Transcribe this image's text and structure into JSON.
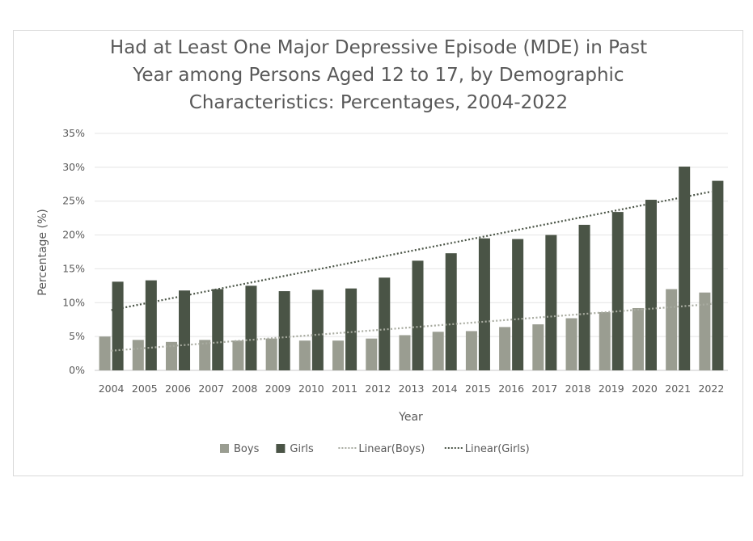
{
  "chart_data": {
    "type": "bar",
    "title_lines": [
      "Had at Least One Major Depressive Episode (MDE) in Past",
      "Year among Persons Aged 12 to 17, by Demographic",
      "Characteristics: Percentages, 2004-2022"
    ],
    "xlabel": "Year",
    "ylabel": "Percentage (%)",
    "ylim": [
      0,
      35
    ],
    "yticks": [
      "0%",
      "5%",
      "10%",
      "15%",
      "20%",
      "25%",
      "30%",
      "35%"
    ],
    "grid": true,
    "legend_position": "bottom",
    "categories": [
      "2004",
      "2005",
      "2006",
      "2007",
      "2008",
      "2009",
      "2010",
      "2011",
      "2012",
      "2013",
      "2014",
      "2015",
      "2016",
      "2017",
      "2018",
      "2019",
      "2020",
      "2021",
      "2022"
    ],
    "series": [
      {
        "name": "Boys",
        "color": "#9a9d91",
        "values": [
          5.0,
          4.5,
          4.2,
          4.5,
          4.4,
          4.7,
          4.4,
          4.4,
          4.7,
          5.2,
          5.7,
          5.8,
          6.4,
          6.8,
          7.7,
          8.6,
          9.2,
          12.0,
          11.5
        ]
      },
      {
        "name": "Girls",
        "color": "#4a5446",
        "values": [
          13.1,
          13.3,
          11.8,
          12.0,
          12.5,
          11.7,
          11.9,
          12.1,
          13.7,
          16.2,
          17.3,
          19.5,
          19.4,
          20.0,
          21.5,
          23.4,
          25.2,
          30.1,
          28.0
        ]
      }
    ],
    "trendlines": [
      {
        "name": "Linear(Boys)",
        "color": "#a8aba0",
        "start": 2.9,
        "end": 9.8
      },
      {
        "name": "Linear(Girls)",
        "color": "#4a5446",
        "start": 8.9,
        "end": 26.4
      }
    ]
  }
}
